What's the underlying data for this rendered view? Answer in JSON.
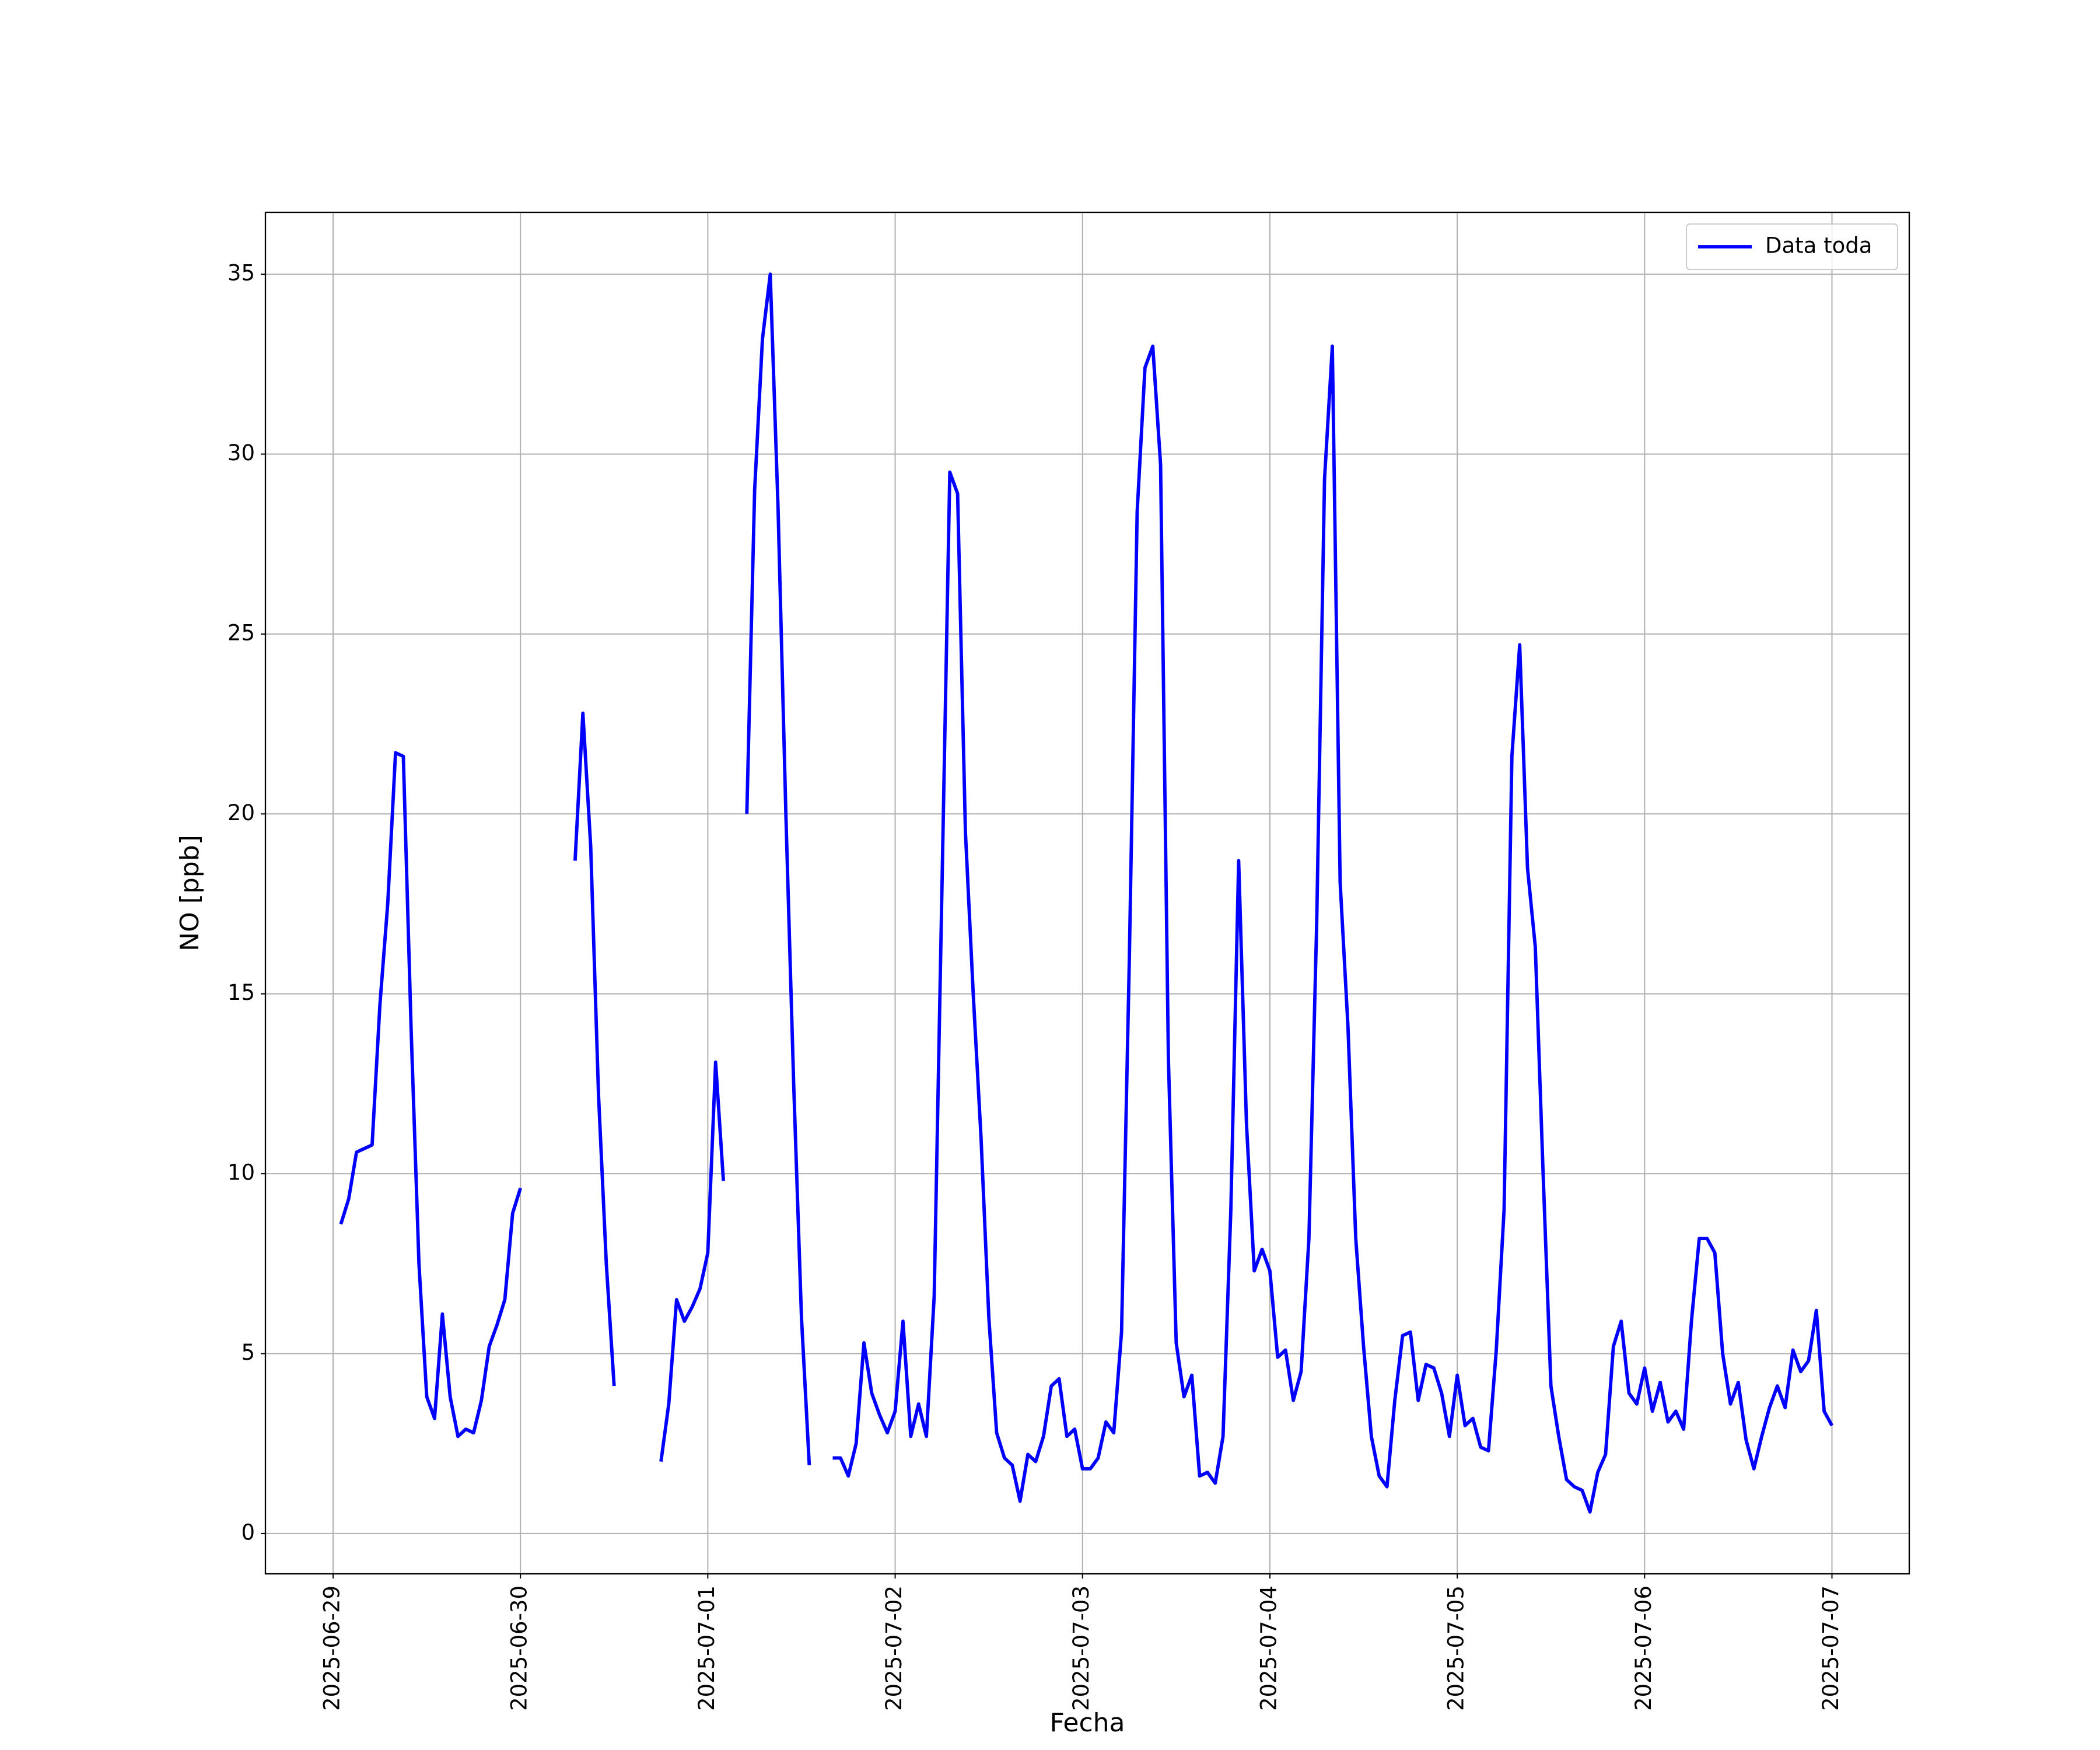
{
  "chart_data": {
    "type": "line",
    "x_label": "Fecha",
    "y_label": "NO [ppb]",
    "x": [
      "2025-06-29T01:00",
      "2025-06-29T02:00",
      "2025-06-29T03:00",
      "2025-06-29T04:00",
      "2025-06-29T05:00",
      "2025-06-29T06:00",
      "2025-06-29T07:00",
      "2025-06-29T08:00",
      "2025-06-29T09:00",
      "2025-06-29T10:00",
      "2025-06-29T11:00",
      "2025-06-29T12:00",
      "2025-06-29T13:00",
      "2025-06-29T14:00",
      "2025-06-29T15:00",
      "2025-06-29T16:00",
      "2025-06-29T17:00",
      "2025-06-29T18:00",
      "2025-06-29T19:00",
      "2025-06-29T20:00",
      "2025-06-29T21:00",
      "2025-06-29T22:00",
      "2025-06-29T23:00",
      "2025-06-30T00:00",
      "2025-06-30T01:00",
      "2025-06-30T02:00",
      "2025-06-30T03:00",
      "2025-06-30T04:00",
      "2025-06-30T05:00",
      "2025-06-30T06:00",
      "2025-06-30T07:00",
      "2025-06-30T08:00",
      "2025-06-30T09:00",
      "2025-06-30T10:00",
      "2025-06-30T11:00",
      "2025-06-30T12:00",
      "2025-06-30T13:00",
      "2025-06-30T14:00",
      "2025-06-30T15:00",
      "2025-06-30T16:00",
      "2025-06-30T17:00",
      "2025-06-30T18:00",
      "2025-06-30T19:00",
      "2025-06-30T20:00",
      "2025-06-30T21:00",
      "2025-06-30T22:00",
      "2025-06-30T23:00",
      "2025-07-01T00:00",
      "2025-07-01T01:00",
      "2025-07-01T02:00",
      "2025-07-01T03:00",
      "2025-07-01T04:00",
      "2025-07-01T05:00",
      "2025-07-01T06:00",
      "2025-07-01T07:00",
      "2025-07-01T08:00",
      "2025-07-01T09:00",
      "2025-07-01T10:00",
      "2025-07-01T11:00",
      "2025-07-01T12:00",
      "2025-07-01T13:00",
      "2025-07-01T14:00",
      "2025-07-01T15:00",
      "2025-07-01T16:00",
      "2025-07-01T17:00",
      "2025-07-01T18:00",
      "2025-07-01T19:00",
      "2025-07-01T20:00",
      "2025-07-01T21:00",
      "2025-07-01T22:00",
      "2025-07-01T23:00",
      "2025-07-02T00:00",
      "2025-07-02T01:00",
      "2025-07-02T02:00",
      "2025-07-02T03:00",
      "2025-07-02T04:00",
      "2025-07-02T05:00",
      "2025-07-02T06:00",
      "2025-07-02T07:00",
      "2025-07-02T08:00",
      "2025-07-02T09:00",
      "2025-07-02T10:00",
      "2025-07-02T11:00",
      "2025-07-02T12:00",
      "2025-07-02T13:00",
      "2025-07-02T14:00",
      "2025-07-02T15:00",
      "2025-07-02T16:00",
      "2025-07-02T17:00",
      "2025-07-02T18:00",
      "2025-07-02T19:00",
      "2025-07-02T20:00",
      "2025-07-02T21:00",
      "2025-07-02T22:00",
      "2025-07-02T23:00",
      "2025-07-03T00:00",
      "2025-07-03T01:00",
      "2025-07-03T02:00",
      "2025-07-03T03:00",
      "2025-07-03T04:00",
      "2025-07-03T05:00",
      "2025-07-03T06:00",
      "2025-07-03T07:00",
      "2025-07-03T08:00",
      "2025-07-03T09:00",
      "2025-07-03T10:00",
      "2025-07-03T11:00",
      "2025-07-03T12:00",
      "2025-07-03T13:00",
      "2025-07-03T14:00",
      "2025-07-03T15:00",
      "2025-07-03T16:00",
      "2025-07-03T17:00",
      "2025-07-03T18:00",
      "2025-07-03T19:00",
      "2025-07-03T20:00",
      "2025-07-03T21:00",
      "2025-07-03T22:00",
      "2025-07-03T23:00",
      "2025-07-04T00:00",
      "2025-07-04T01:00",
      "2025-07-04T02:00",
      "2025-07-04T03:00",
      "2025-07-04T04:00",
      "2025-07-04T05:00",
      "2025-07-04T06:00",
      "2025-07-04T07:00",
      "2025-07-04T08:00",
      "2025-07-04T09:00",
      "2025-07-04T10:00",
      "2025-07-04T11:00",
      "2025-07-04T12:00",
      "2025-07-04T13:00",
      "2025-07-04T14:00",
      "2025-07-04T15:00",
      "2025-07-04T16:00",
      "2025-07-04T17:00",
      "2025-07-04T18:00",
      "2025-07-04T19:00",
      "2025-07-04T20:00",
      "2025-07-04T21:00",
      "2025-07-04T22:00",
      "2025-07-04T23:00",
      "2025-07-05T00:00",
      "2025-07-05T01:00",
      "2025-07-05T02:00",
      "2025-07-05T03:00",
      "2025-07-05T04:00",
      "2025-07-05T05:00",
      "2025-07-05T06:00",
      "2025-07-05T07:00",
      "2025-07-05T08:00",
      "2025-07-05T09:00",
      "2025-07-05T10:00",
      "2025-07-05T11:00",
      "2025-07-05T12:00",
      "2025-07-05T13:00",
      "2025-07-05T14:00",
      "2025-07-05T15:00",
      "2025-07-05T16:00",
      "2025-07-05T17:00",
      "2025-07-05T18:00",
      "2025-07-05T19:00",
      "2025-07-05T20:00",
      "2025-07-05T21:00",
      "2025-07-05T22:00",
      "2025-07-05T23:00",
      "2025-07-06T00:00",
      "2025-07-06T01:00",
      "2025-07-06T02:00",
      "2025-07-06T03:00",
      "2025-07-06T04:00",
      "2025-07-06T05:00",
      "2025-07-06T06:00",
      "2025-07-06T07:00",
      "2025-07-06T08:00",
      "2025-07-06T09:00",
      "2025-07-06T10:00",
      "2025-07-06T11:00",
      "2025-07-06T12:00",
      "2025-07-06T13:00",
      "2025-07-06T14:00",
      "2025-07-06T15:00",
      "2025-07-06T16:00",
      "2025-07-06T17:00",
      "2025-07-06T18:00",
      "2025-07-06T19:00",
      "2025-07-06T20:00",
      "2025-07-06T21:00",
      "2025-07-06T22:00",
      "2025-07-06T23:00",
      "2025-07-07T00:00"
    ],
    "series": [
      {
        "name": "Data toda",
        "color": "#0000ff",
        "values": [
          8.6,
          9.3,
          10.6,
          10.7,
          10.8,
          14.7,
          17.5,
          21.7,
          21.6,
          14,
          7.5,
          3.8,
          3.2,
          6.1,
          3.8,
          2.7,
          2.9,
          2.8,
          3.7,
          5.2,
          5.8,
          6.5,
          8.9,
          9.6,
          null,
          null,
          null,
          null,
          null,
          null,
          18.7,
          22.8,
          19.1,
          12.2,
          7.5,
          4.1,
          null,
          null,
          null,
          null,
          null,
          2.0,
          3.6,
          6.5,
          5.9,
          6.3,
          6.8,
          7.8,
          13.1,
          9.8,
          null,
          null,
          20,
          29,
          33.2,
          35,
          28.5,
          20,
          12.5,
          6,
          1.9,
          null,
          null,
          2.1,
          2.1,
          1.6,
          2.5,
          5.3,
          3.9,
          3.3,
          2.8,
          3.4,
          5.9,
          2.7,
          3.6,
          2.7,
          6.6,
          18,
          29.5,
          28.9,
          19.5,
          15,
          11,
          6,
          2.8,
          2.1,
          1.9,
          0.9,
          2.2,
          2.0,
          2.7,
          4.1,
          4.3,
          2.7,
          2.9,
          1.8,
          1.8,
          2.1,
          3.1,
          2.8,
          5.6,
          16,
          28.4,
          32.4,
          33,
          29.7,
          13.2,
          5.3,
          3.8,
          4.4,
          1.6,
          1.7,
          1.4,
          2.7,
          9,
          18.7,
          11.4,
          7.3,
          7.9,
          7.3,
          4.9,
          5.1,
          3.7,
          4.5,
          8.2,
          17,
          29.3,
          33,
          18.1,
          14.1,
          8.2,
          5.2,
          2.7,
          1.6,
          1.3,
          3.7,
          5.5,
          5.6,
          3.7,
          4.7,
          4.6,
          3.9,
          2.7,
          4.4,
          3.0,
          3.2,
          2.4,
          2.3,
          5.1,
          9,
          21.6,
          24.7,
          18.5,
          16.3,
          10,
          4.1,
          2.7,
          1.5,
          1.3,
          1.2,
          0.6,
          1.7,
          2.2,
          5.2,
          5.9,
          3.9,
          3.6,
          4.6,
          3.4,
          4.2,
          3.1,
          3.4,
          2.9,
          5.9,
          8.2,
          8.2,
          7.8,
          5,
          3.6,
          4.2,
          2.6,
          1.8,
          2.7,
          3.5,
          4.1,
          3.5,
          5.1,
          4.5,
          4.8,
          6.2,
          3.4,
          3.0
        ]
      }
    ],
    "xlim": [
      "2025-06-28T15:20",
      "2025-07-07T09:54"
    ],
    "xticks": [
      "2025-06-29",
      "2025-06-30",
      "2025-07-01",
      "2025-07-02",
      "2025-07-03",
      "2025-07-04",
      "2025-07-05",
      "2025-07-06",
      "2025-07-07"
    ],
    "ylim": [
      -1.12,
      36.72
    ],
    "yticks": [
      0,
      5,
      10,
      15,
      20,
      25,
      30,
      35
    ],
    "grid": true,
    "legend": "upper right"
  }
}
